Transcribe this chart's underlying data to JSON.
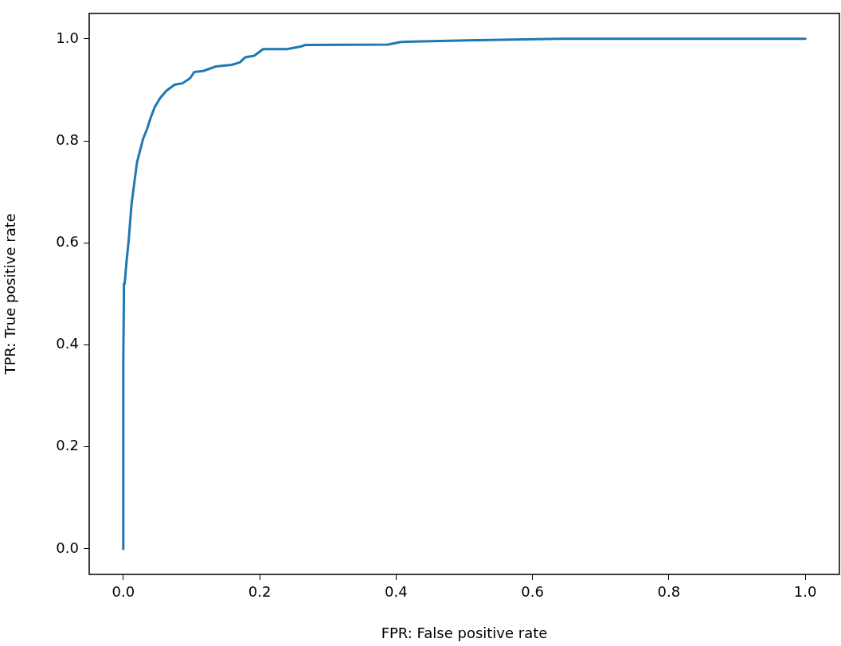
{
  "chart_data": {
    "type": "line",
    "xlabel": "FPR: False positive rate",
    "ylabel": "TPR: True positive rate",
    "x": [
      0,
      0,
      0.001,
      0.002,
      0.005,
      0.008,
      0.012,
      0.016,
      0.02,
      0.023,
      0.029,
      0.035,
      0.04,
      0.046,
      0.054,
      0.063,
      0.075,
      0.087,
      0.098,
      0.104,
      0.117,
      0.136,
      0.159,
      0.171,
      0.179,
      0.192,
      0.205,
      0.24,
      0.26,
      0.267,
      0.388,
      0.407,
      0.504,
      0.638,
      1
    ],
    "series": [
      {
        "color": "#1f77b4",
        "values": [
          0,
          0.37,
          0.52,
          0.52,
          0.567,
          0.606,
          0.675,
          0.716,
          0.757,
          0.773,
          0.804,
          0.824,
          0.845,
          0.866,
          0.884,
          0.898,
          0.91,
          0.913,
          0.923,
          0.935,
          0.937,
          0.946,
          0.949,
          0.954,
          0.964,
          0.967,
          0.98,
          0.98,
          0.985,
          0.988,
          0.989,
          0.994,
          0.997,
          1,
          1
        ]
      }
    ],
    "xlim": [
      -0.05,
      1.05
    ],
    "ylim": [
      -0.05,
      1.05
    ],
    "xticks": [
      {
        "value": 0,
        "label": "0.0"
      },
      {
        "value": 0.2,
        "label": "0.2"
      },
      {
        "value": 0.4,
        "label": "0.4"
      },
      {
        "value": 0.6,
        "label": "0.6"
      },
      {
        "value": 0.8,
        "label": "0.8"
      },
      {
        "value": 1,
        "label": "1.0"
      }
    ],
    "yticks": [
      {
        "value": 0,
        "label": "0.0"
      },
      {
        "value": 0.2,
        "label": "0.2"
      },
      {
        "value": 0.4,
        "label": "0.4"
      },
      {
        "value": 0.6,
        "label": "0.6"
      },
      {
        "value": 0.8,
        "label": "0.8"
      },
      {
        "value": 1,
        "label": "1.0"
      }
    ],
    "grid": false,
    "legend": false,
    "marker": "none",
    "line_style": "solid"
  }
}
